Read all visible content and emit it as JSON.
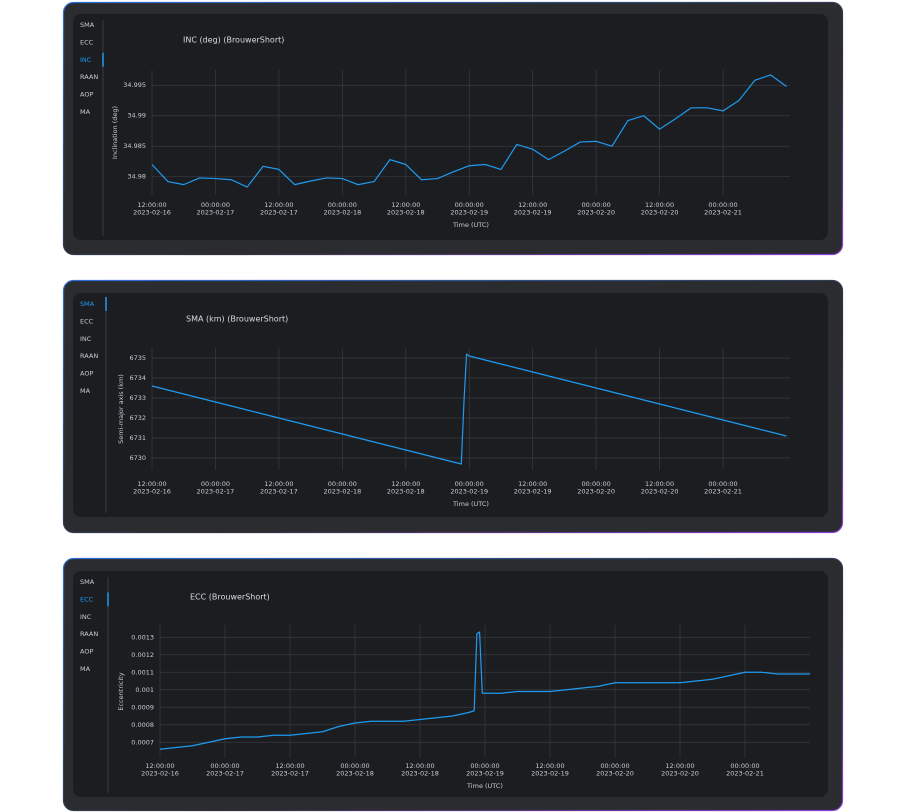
{
  "panels": [
    {
      "tabs": [
        "SMA",
        "ECC",
        "INC",
        "RAAN",
        "AOP",
        "MA"
      ],
      "active_tab": 2
    },
    {
      "tabs": [
        "SMA",
        "ECC",
        "INC",
        "RAAN",
        "AOP",
        "MA"
      ],
      "active_tab": 0
    },
    {
      "tabs": [
        "SMA",
        "ECC",
        "INC",
        "RAAN",
        "AOP",
        "MA"
      ],
      "active_tab": 1
    }
  ],
  "chart_data": [
    {
      "type": "line",
      "title": "INC (deg) (BrouwerShort)",
      "x_label": "Time (UTC)",
      "y_label": "Inclination (deg)",
      "grid": true,
      "color": "#1e9bf0",
      "x": [
        "2023-02-16T12:00:00",
        "2023-02-16T15:00:00",
        "2023-02-16T18:00:00",
        "2023-02-16T21:00:00",
        "2023-02-17T00:00:00",
        "2023-02-17T03:00:00",
        "2023-02-17T06:00:00",
        "2023-02-17T09:00:00",
        "2023-02-17T12:00:00",
        "2023-02-17T15:00:00",
        "2023-02-17T18:00:00",
        "2023-02-17T21:00:00",
        "2023-02-18T00:00:00",
        "2023-02-18T03:00:00",
        "2023-02-18T06:00:00",
        "2023-02-18T09:00:00",
        "2023-02-18T12:00:00",
        "2023-02-18T15:00:00",
        "2023-02-18T18:00:00",
        "2023-02-18T21:00:00",
        "2023-02-19T00:00:00",
        "2023-02-19T03:00:00",
        "2023-02-19T06:00:00",
        "2023-02-19T09:00:00",
        "2023-02-19T12:00:00",
        "2023-02-19T15:00:00",
        "2023-02-19T18:00:00",
        "2023-02-19T21:00:00",
        "2023-02-20T00:00:00",
        "2023-02-20T03:00:00",
        "2023-02-20T06:00:00",
        "2023-02-20T09:00:00",
        "2023-02-20T12:00:00",
        "2023-02-20T15:00:00",
        "2023-02-20T18:00:00",
        "2023-02-20T21:00:00",
        "2023-02-21T00:00:00",
        "2023-02-21T03:00:00",
        "2023-02-21T06:00:00",
        "2023-02-21T09:00:00",
        "2023-02-21T12:00:00"
      ],
      "values": [
        34.982,
        34.9792,
        34.9787,
        34.9798,
        34.9797,
        34.9795,
        34.9783,
        34.9817,
        34.9812,
        34.9787,
        34.9793,
        34.9798,
        34.9797,
        34.9787,
        34.9792,
        34.9828,
        34.982,
        34.9795,
        34.9797,
        34.9808,
        34.9818,
        34.982,
        34.9812,
        34.9853,
        34.9845,
        34.9828,
        34.9842,
        34.9857,
        34.9858,
        34.985,
        34.9892,
        34.99,
        34.9878,
        34.9895,
        34.9913,
        34.9913,
        34.9908,
        34.9925,
        34.9958,
        34.9967,
        34.9948
      ],
      "xlim": [
        "2023-02-16T12:00:00",
        "2023-02-21T12:40:00"
      ],
      "xticks": [
        {
          "value": "2023-02-16T12:00:00",
          "label": "12:00:00 2023-02-16"
        },
        {
          "value": "2023-02-17T00:00:00",
          "label": "00:00:00 2023-02-17"
        },
        {
          "value": "2023-02-17T12:00:00",
          "label": "12:00:00 2023-02-17"
        },
        {
          "value": "2023-02-18T00:00:00",
          "label": "00:00:00 2023-02-18"
        },
        {
          "value": "2023-02-18T12:00:00",
          "label": "12:00:00 2023-02-18"
        },
        {
          "value": "2023-02-19T00:00:00",
          "label": "00:00:00 2023-02-19"
        },
        {
          "value": "2023-02-19T12:00:00",
          "label": "12:00:00 2023-02-19"
        },
        {
          "value": "2023-02-20T00:00:00",
          "label": "00:00:00 2023-02-20"
        },
        {
          "value": "2023-02-20T12:00:00",
          "label": "12:00:00 2023-02-20"
        },
        {
          "value": "2023-02-21T00:00:00",
          "label": "00:00:00 2023-02-21"
        }
      ],
      "ylim": [
        34.977,
        34.9975
      ],
      "yticks": [
        34.98,
        34.985,
        34.99,
        34.995
      ]
    },
    {
      "type": "line",
      "title": "SMA (km) (BrouwerShort)",
      "x_label": "Time (UTC)",
      "y_label": "Semi-major axis (km)",
      "grid": true,
      "color": "#1e9bf0",
      "x": [
        "2023-02-16T12:00:00",
        "2023-02-16T15:00:00",
        "2023-02-16T18:00:00",
        "2023-02-16T21:00:00",
        "2023-02-17T00:00:00",
        "2023-02-17T03:00:00",
        "2023-02-17T06:00:00",
        "2023-02-17T09:00:00",
        "2023-02-17T12:00:00",
        "2023-02-17T15:00:00",
        "2023-02-17T18:00:00",
        "2023-02-17T21:00:00",
        "2023-02-18T00:00:00",
        "2023-02-18T03:00:00",
        "2023-02-18T06:00:00",
        "2023-02-18T09:00:00",
        "2023-02-18T12:00:00",
        "2023-02-18T15:00:00",
        "2023-02-18T18:00:00",
        "2023-02-18T21:00:00",
        "2023-02-18T22:30:00",
        "2023-02-18T23:00:00",
        "2023-02-18T23:30:00",
        "2023-02-19T00:00:00",
        "2023-02-19T03:00:00",
        "2023-02-19T06:00:00",
        "2023-02-19T09:00:00",
        "2023-02-19T12:00:00",
        "2023-02-19T15:00:00",
        "2023-02-19T18:00:00",
        "2023-02-19T21:00:00",
        "2023-02-20T00:00:00",
        "2023-02-20T03:00:00",
        "2023-02-20T06:00:00",
        "2023-02-20T09:00:00",
        "2023-02-20T12:00:00",
        "2023-02-20T15:00:00",
        "2023-02-20T18:00:00",
        "2023-02-20T21:00:00",
        "2023-02-21T00:00:00",
        "2023-02-21T03:00:00",
        "2023-02-21T06:00:00",
        "2023-02-21T09:00:00",
        "2023-02-21T12:00:00"
      ],
      "values": [
        6733.6,
        6733.4,
        6733.2,
        6733.0,
        6732.8,
        6732.6,
        6732.4,
        6732.2,
        6732.0,
        6731.8,
        6731.6,
        6731.4,
        6731.2,
        6731.0,
        6730.8,
        6730.6,
        6730.4,
        6730.2,
        6730.0,
        6729.8,
        6729.7,
        6732.8,
        6735.2,
        6735.1,
        6734.9,
        6734.7,
        6734.5,
        6734.3,
        6734.1,
        6733.9,
        6733.7,
        6733.5,
        6733.3,
        6733.1,
        6732.9,
        6732.7,
        6732.5,
        6732.3,
        6732.1,
        6731.9,
        6731.7,
        6731.5,
        6731.3,
        6731.1
      ],
      "xlim": [
        "2023-02-16T12:00:00",
        "2023-02-21T12:40:00"
      ],
      "xticks": [
        {
          "value": "2023-02-16T12:00:00",
          "label": "12:00:00 2023-02-16"
        },
        {
          "value": "2023-02-17T00:00:00",
          "label": "00:00:00 2023-02-17"
        },
        {
          "value": "2023-02-17T12:00:00",
          "label": "12:00:00 2023-02-17"
        },
        {
          "value": "2023-02-18T00:00:00",
          "label": "00:00:00 2023-02-18"
        },
        {
          "value": "2023-02-18T12:00:00",
          "label": "12:00:00 2023-02-18"
        },
        {
          "value": "2023-02-19T00:00:00",
          "label": "00:00:00 2023-02-19"
        },
        {
          "value": "2023-02-19T12:00:00",
          "label": "12:00:00 2023-02-19"
        },
        {
          "value": "2023-02-20T00:00:00",
          "label": "00:00:00 2023-02-20"
        },
        {
          "value": "2023-02-20T12:00:00",
          "label": "12:00:00 2023-02-20"
        },
        {
          "value": "2023-02-21T00:00:00",
          "label": "00:00:00 2023-02-21"
        }
      ],
      "ylim": [
        6729.4,
        6735.5
      ],
      "yticks": [
        6730,
        6731,
        6732,
        6733,
        6734,
        6735
      ]
    },
    {
      "type": "line",
      "title": "ECC (BrouwerShort)",
      "x_label": "Time (UTC)",
      "y_label": "Eccentricity",
      "grid": true,
      "color": "#1e9bf0",
      "x": [
        "2023-02-16T12:00:00",
        "2023-02-16T15:00:00",
        "2023-02-16T18:00:00",
        "2023-02-16T21:00:00",
        "2023-02-17T00:00:00",
        "2023-02-17T03:00:00",
        "2023-02-17T06:00:00",
        "2023-02-17T09:00:00",
        "2023-02-17T12:00:00",
        "2023-02-17T15:00:00",
        "2023-02-17T18:00:00",
        "2023-02-17T21:00:00",
        "2023-02-18T00:00:00",
        "2023-02-18T03:00:00",
        "2023-02-18T06:00:00",
        "2023-02-18T09:00:00",
        "2023-02-18T12:00:00",
        "2023-02-18T15:00:00",
        "2023-02-18T18:00:00",
        "2023-02-18T21:00:00",
        "2023-02-18T22:00:00",
        "2023-02-18T22:30:00",
        "2023-02-18T23:00:00",
        "2023-02-18T23:30:00",
        "2023-02-19T00:00:00",
        "2023-02-19T03:00:00",
        "2023-02-19T06:00:00",
        "2023-02-19T09:00:00",
        "2023-02-19T12:00:00",
        "2023-02-19T15:00:00",
        "2023-02-19T18:00:00",
        "2023-02-19T21:00:00",
        "2023-02-20T00:00:00",
        "2023-02-20T03:00:00",
        "2023-02-20T06:00:00",
        "2023-02-20T09:00:00",
        "2023-02-20T12:00:00",
        "2023-02-20T15:00:00",
        "2023-02-20T18:00:00",
        "2023-02-20T21:00:00",
        "2023-02-21T00:00:00",
        "2023-02-21T03:00:00",
        "2023-02-21T06:00:00",
        "2023-02-21T09:00:00",
        "2023-02-21T12:00:00"
      ],
      "values": [
        0.00066,
        0.00067,
        0.00068,
        0.0007,
        0.00072,
        0.00073,
        0.00073,
        0.00074,
        0.00074,
        0.00075,
        0.00076,
        0.00079,
        0.00081,
        0.00082,
        0.00082,
        0.00082,
        0.00083,
        0.00084,
        0.00085,
        0.00087,
        0.00088,
        0.00132,
        0.00133,
        0.00098,
        0.00098,
        0.00098,
        0.00099,
        0.00099,
        0.00099,
        0.001,
        0.00101,
        0.00102,
        0.00104,
        0.00104,
        0.00104,
        0.00104,
        0.00104,
        0.00105,
        0.00106,
        0.00108,
        0.0011,
        0.0011,
        0.00109,
        0.00109,
        0.00109
      ],
      "xlim": [
        "2023-02-16T12:00:00",
        "2023-02-21T12:00:00"
      ],
      "xticks": [
        {
          "value": "2023-02-16T12:00:00",
          "label": "12:00:00 2023-02-16"
        },
        {
          "value": "2023-02-17T00:00:00",
          "label": "00:00:00 2023-02-17"
        },
        {
          "value": "2023-02-17T12:00:00",
          "label": "12:00:00 2023-02-17"
        },
        {
          "value": "2023-02-18T00:00:00",
          "label": "00:00:00 2023-02-18"
        },
        {
          "value": "2023-02-18T12:00:00",
          "label": "12:00:00 2023-02-18"
        },
        {
          "value": "2023-02-19T00:00:00",
          "label": "00:00:00 2023-02-19"
        },
        {
          "value": "2023-02-19T12:00:00",
          "label": "12:00:00 2023-02-19"
        },
        {
          "value": "2023-02-20T00:00:00",
          "label": "00:00:00 2023-02-20"
        },
        {
          "value": "2023-02-20T12:00:00",
          "label": "12:00:00 2023-02-20"
        },
        {
          "value": "2023-02-21T00:00:00",
          "label": "00:00:00 2023-02-21"
        }
      ],
      "ylim": [
        0.00061,
        0.00137
      ],
      "yticks": [
        0.0007,
        0.0008,
        0.0009,
        0.001,
        0.0011,
        0.0012,
        0.0013
      ]
    }
  ]
}
